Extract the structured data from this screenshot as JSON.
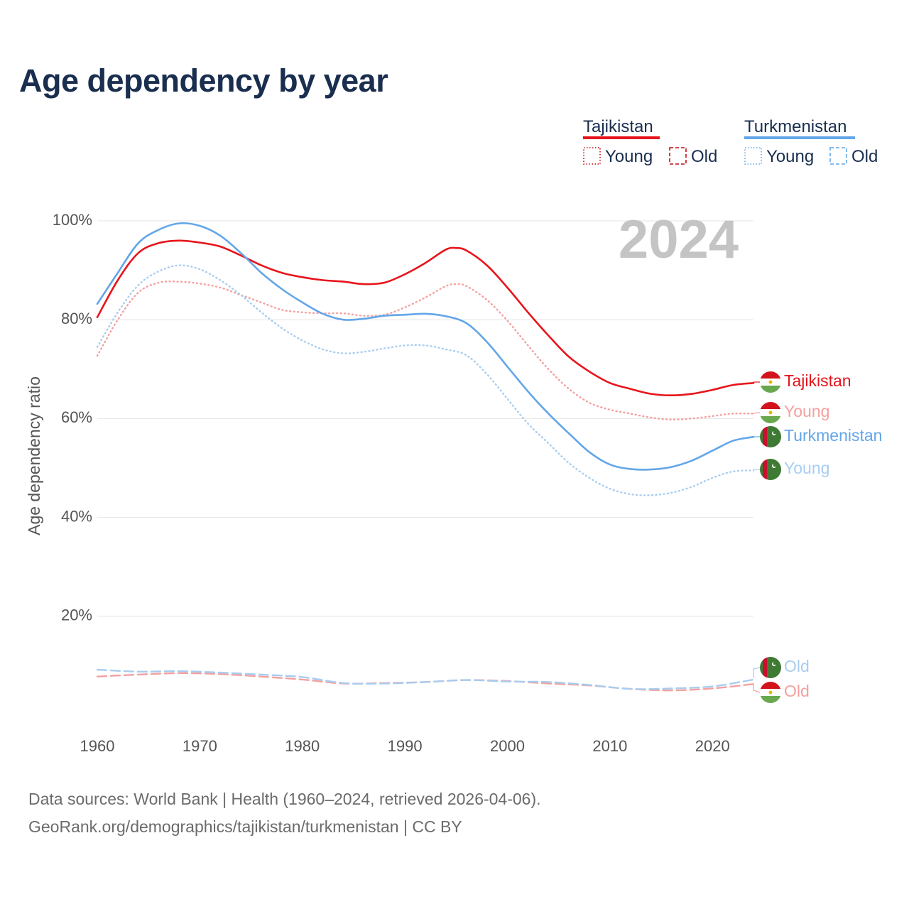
{
  "title": "Age dependency by year",
  "year_watermark": "2024",
  "legend": {
    "countries": [
      {
        "name": "Tajikistan",
        "color": "#e8141b"
      },
      {
        "name": "Turkmenistan",
        "color": "#63a6e8"
      }
    ],
    "young_label": "Young",
    "old_label": "Old"
  },
  "end_labels": {
    "tajikistan": "Tajikistan",
    "tajikistan_young": "Young",
    "turkmenistan": "Turkmenistan",
    "turkmenistan_young": "Young",
    "turkmenistan_old": "Old",
    "tajikistan_old": "Old"
  },
  "source": {
    "line1": "Data sources: World Bank | Health (1960–2024, retrieved 2026-04-06).",
    "line2": "GeoRank.org/demographics/tajikistan/turkmenistan | CC BY"
  },
  "chart_data": {
    "type": "line",
    "title": "Age dependency by year",
    "xlabel": "",
    "ylabel": "Age dependency ratio",
    "xlim": [
      1960,
      2024
    ],
    "ylim": [
      0,
      100
    ],
    "x_ticks": [
      "1960",
      "1970",
      "1980",
      "1990",
      "2000",
      "2010",
      "2020"
    ],
    "y_ticks": [
      "20%",
      "40%",
      "60%",
      "80%",
      "100%"
    ],
    "grid": true,
    "legend_position": "top-right",
    "colors": {
      "tajikistan": "#e8141b",
      "tajikistan_light": "#f4a0a0",
      "turkmenistan": "#63a6e8",
      "turkmenistan_light": "#a8cdf0"
    },
    "series": [
      {
        "key": "tajikistan",
        "name": "Tajikistan",
        "style": "solid",
        "points": [
          [
            1960,
            80.5
          ],
          [
            1962,
            88
          ],
          [
            1964,
            93.5
          ],
          [
            1966,
            95.5
          ],
          [
            1968,
            96
          ],
          [
            1970,
            95.6
          ],
          [
            1972,
            94.8
          ],
          [
            1974,
            93
          ],
          [
            1976,
            91
          ],
          [
            1978,
            89.5
          ],
          [
            1980,
            88.6
          ],
          [
            1982,
            88
          ],
          [
            1984,
            87.7
          ],
          [
            1986,
            87.2
          ],
          [
            1988,
            87.5
          ],
          [
            1990,
            89.2
          ],
          [
            1992,
            91.5
          ],
          [
            1994,
            94.2
          ],
          [
            1995,
            94.5
          ],
          [
            1996,
            94
          ],
          [
            1998,
            91
          ],
          [
            2000,
            86.5
          ],
          [
            2002,
            81.5
          ],
          [
            2004,
            76.8
          ],
          [
            2006,
            72.5
          ],
          [
            2008,
            69.5
          ],
          [
            2010,
            67.2
          ],
          [
            2012,
            66
          ],
          [
            2014,
            65
          ],
          [
            2016,
            64.7
          ],
          [
            2018,
            65
          ],
          [
            2020,
            65.8
          ],
          [
            2022,
            66.8
          ],
          [
            2024,
            67.2
          ]
        ]
      },
      {
        "key": "tajikistan_young",
        "name": "Young",
        "style": "dotted",
        "points": [
          [
            1960,
            72.7
          ],
          [
            1962,
            80
          ],
          [
            1964,
            85.5
          ],
          [
            1966,
            87.5
          ],
          [
            1968,
            87.7
          ],
          [
            1970,
            87.3
          ],
          [
            1972,
            86.5
          ],
          [
            1974,
            85
          ],
          [
            1976,
            83.5
          ],
          [
            1978,
            82
          ],
          [
            1980,
            81.5
          ],
          [
            1982,
            81.3
          ],
          [
            1984,
            81.3
          ],
          [
            1986,
            80.8
          ],
          [
            1988,
            81
          ],
          [
            1990,
            82.5
          ],
          [
            1992,
            84.5
          ],
          [
            1994,
            86.8
          ],
          [
            1995,
            87.2
          ],
          [
            1996,
            86.8
          ],
          [
            1998,
            84
          ],
          [
            2000,
            79.8
          ],
          [
            2002,
            74.8
          ],
          [
            2004,
            70
          ],
          [
            2006,
            66
          ],
          [
            2008,
            63.2
          ],
          [
            2010,
            61.8
          ],
          [
            2012,
            61
          ],
          [
            2014,
            60.2
          ],
          [
            2016,
            59.8
          ],
          [
            2018,
            60
          ],
          [
            2020,
            60.5
          ],
          [
            2022,
            61
          ],
          [
            2024,
            61
          ]
        ]
      },
      {
        "key": "tajikistan_old",
        "name": "Old",
        "style": "dashed",
        "points": [
          [
            1960,
            7.8
          ],
          [
            1964,
            8.2
          ],
          [
            1968,
            8.5
          ],
          [
            1972,
            8.3
          ],
          [
            1976,
            7.8
          ],
          [
            1980,
            7.2
          ],
          [
            1984,
            6.4
          ],
          [
            1988,
            6.5
          ],
          [
            1992,
            6.7
          ],
          [
            1996,
            7.1
          ],
          [
            2000,
            6.9
          ],
          [
            2004,
            6.4
          ],
          [
            2008,
            6
          ],
          [
            2012,
            5.3
          ],
          [
            2016,
            5
          ],
          [
            2020,
            5.4
          ],
          [
            2024,
            6.3
          ]
        ]
      },
      {
        "key": "turkmenistan",
        "name": "Turkmenistan",
        "style": "solid",
        "points": [
          [
            1960,
            83.2
          ],
          [
            1962,
            89.5
          ],
          [
            1964,
            95.5
          ],
          [
            1966,
            98.2
          ],
          [
            1968,
            99.5
          ],
          [
            1970,
            99
          ],
          [
            1972,
            97
          ],
          [
            1974,
            93.5
          ],
          [
            1976,
            89.5
          ],
          [
            1978,
            86.2
          ],
          [
            1980,
            83.5
          ],
          [
            1982,
            81.2
          ],
          [
            1984,
            80
          ],
          [
            1986,
            80.2
          ],
          [
            1988,
            80.8
          ],
          [
            1990,
            81
          ],
          [
            1992,
            81.2
          ],
          [
            1994,
            80.7
          ],
          [
            1996,
            79.3
          ],
          [
            1998,
            75.5
          ],
          [
            2000,
            70.5
          ],
          [
            2002,
            65.5
          ],
          [
            2004,
            61
          ],
          [
            2006,
            57
          ],
          [
            2008,
            53.2
          ],
          [
            2010,
            50.7
          ],
          [
            2012,
            49.8
          ],
          [
            2014,
            49.7
          ],
          [
            2016,
            50.2
          ],
          [
            2018,
            51.5
          ],
          [
            2020,
            53.5
          ],
          [
            2022,
            55.5
          ],
          [
            2024,
            56.3
          ]
        ]
      },
      {
        "key": "turkmenistan_young",
        "name": "Young",
        "style": "dotted",
        "points": [
          [
            1960,
            74.5
          ],
          [
            1962,
            81.5
          ],
          [
            1964,
            87
          ],
          [
            1966,
            89.8
          ],
          [
            1968,
            91
          ],
          [
            1970,
            90.2
          ],
          [
            1972,
            88
          ],
          [
            1974,
            85
          ],
          [
            1976,
            81.5
          ],
          [
            1978,
            78.3
          ],
          [
            1980,
            75.8
          ],
          [
            1982,
            74
          ],
          [
            1984,
            73.2
          ],
          [
            1986,
            73.5
          ],
          [
            1988,
            74.2
          ],
          [
            1990,
            74.8
          ],
          [
            1992,
            74.8
          ],
          [
            1994,
            74
          ],
          [
            1996,
            72.8
          ],
          [
            1998,
            69
          ],
          [
            2000,
            64
          ],
          [
            2002,
            59
          ],
          [
            2004,
            55
          ],
          [
            2006,
            51
          ],
          [
            2008,
            48
          ],
          [
            2010,
            45.8
          ],
          [
            2012,
            44.7
          ],
          [
            2014,
            44.5
          ],
          [
            2016,
            45
          ],
          [
            2018,
            46.2
          ],
          [
            2020,
            48
          ],
          [
            2022,
            49.3
          ],
          [
            2024,
            49.5
          ]
        ]
      },
      {
        "key": "turkmenistan_old",
        "name": "Old",
        "style": "dashed",
        "points": [
          [
            1960,
            9.2
          ],
          [
            1964,
            8.8
          ],
          [
            1968,
            8.9
          ],
          [
            1972,
            8.6
          ],
          [
            1976,
            8.2
          ],
          [
            1980,
            7.7
          ],
          [
            1984,
            6.5
          ],
          [
            1988,
            6.4
          ],
          [
            1992,
            6.7
          ],
          [
            1996,
            7.1
          ],
          [
            2000,
            6.8
          ],
          [
            2004,
            6.7
          ],
          [
            2008,
            6.1
          ],
          [
            2012,
            5.3
          ],
          [
            2016,
            5.4
          ],
          [
            2020,
            5.8
          ],
          [
            2024,
            7.2
          ]
        ]
      }
    ]
  }
}
